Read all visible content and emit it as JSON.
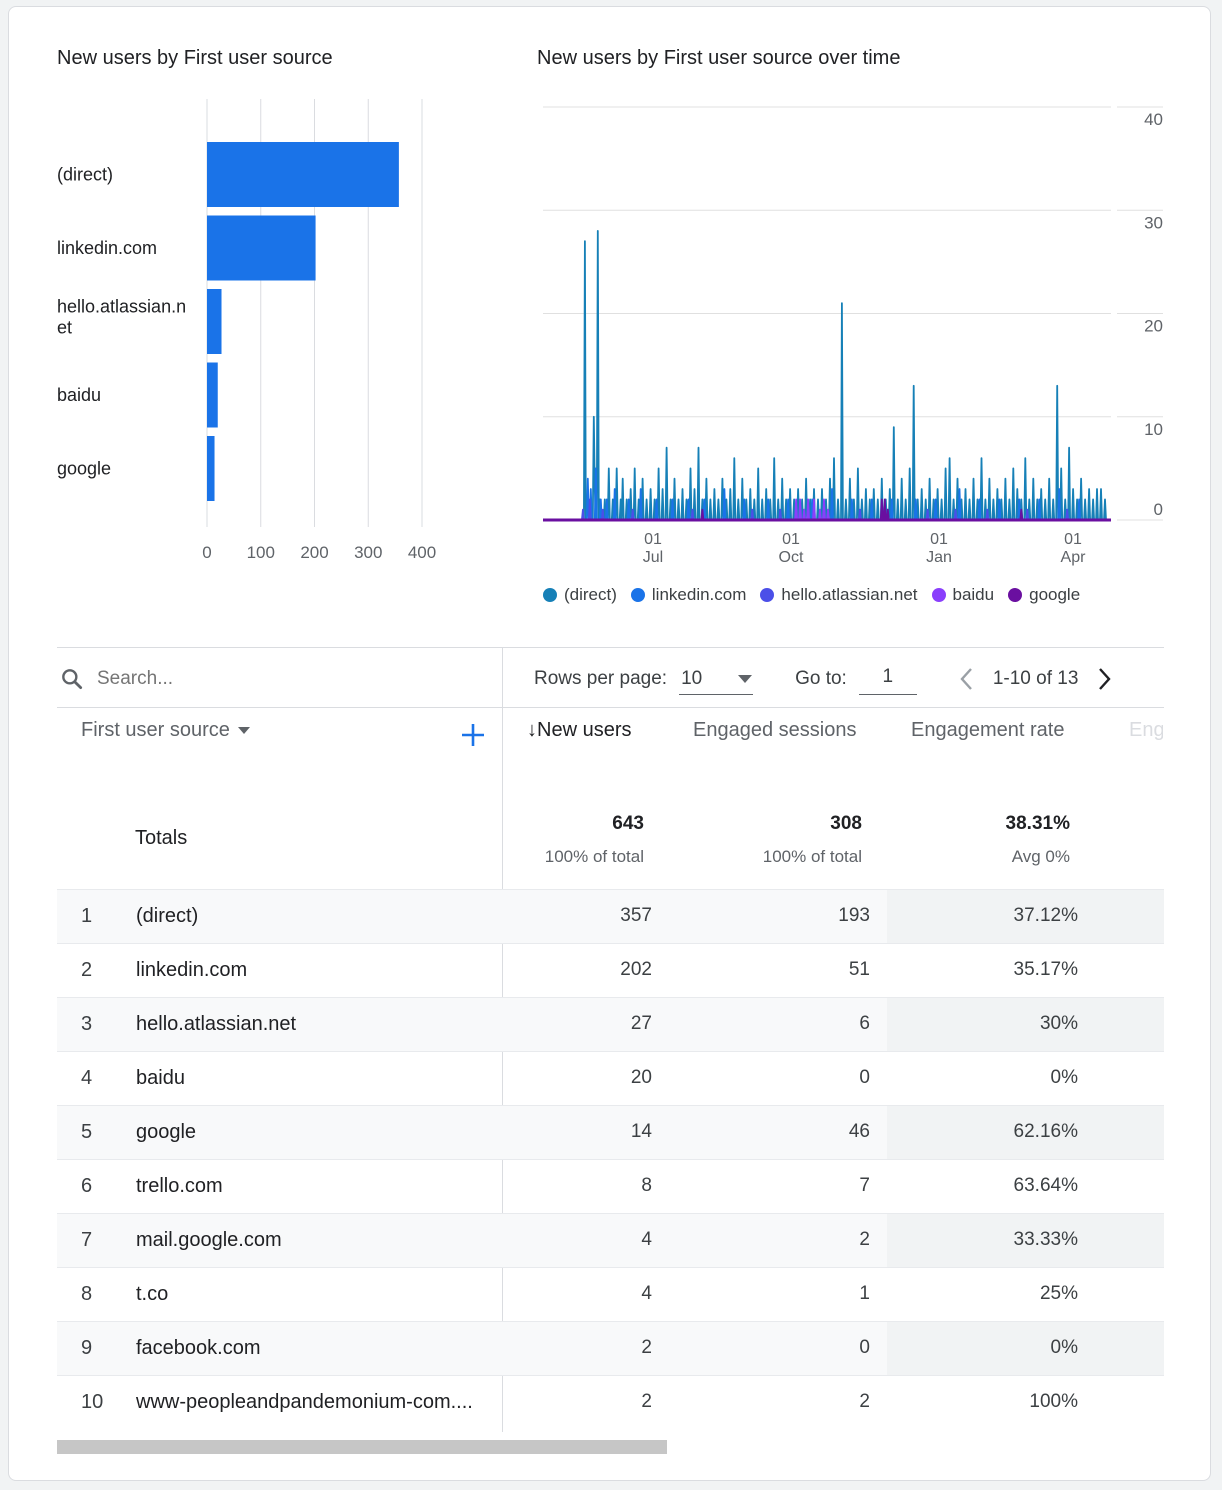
{
  "charts": {
    "bar_title": "New users by First user source",
    "line_title": "New users by First user source over time"
  },
  "chart_data": [
    {
      "type": "bar",
      "orientation": "horizontal",
      "title": "New users by First user source",
      "categories": [
        "(direct)",
        "linkedin.com",
        "hello.atlassian.net",
        "baidu",
        "google"
      ],
      "category_labels": [
        [
          "(direct)"
        ],
        [
          "linkedin.com"
        ],
        [
          "hello.atlassian.n",
          "et"
        ],
        [
          "baidu"
        ],
        [
          "google"
        ]
      ],
      "values": [
        357,
        202,
        27,
        20,
        14
      ],
      "xlim": [
        0,
        400
      ],
      "xticks": [
        "0",
        "100",
        "200",
        "300",
        "400"
      ],
      "color": "#1a73e8"
    },
    {
      "type": "line",
      "title": "New users by First user source over time",
      "ylim": [
        0,
        40
      ],
      "yticks": [
        "0",
        "10",
        "20",
        "30",
        "40"
      ],
      "xticks": [
        {
          "day": "01",
          "month": "Jul"
        },
        {
          "day": "01",
          "month": "Oct"
        },
        {
          "day": "01",
          "month": "Jan"
        },
        {
          "day": "01",
          "month": "Apr"
        }
      ],
      "series": [
        {
          "name": "(direct)",
          "color": "#1680b7",
          "spikes": [
            [
              42,
              27
            ],
            [
              44,
              0
            ],
            [
              51,
              10
            ],
            [
              52,
              3
            ],
            [
              55,
              28
            ],
            [
              57,
              2
            ],
            [
              62,
              2
            ],
            [
              66,
              5
            ],
            [
              70,
              2
            ],
            [
              74,
              5
            ],
            [
              78,
              2
            ],
            [
              80,
              4
            ],
            [
              84,
              2
            ],
            [
              88,
              3
            ],
            [
              92,
              5
            ],
            [
              96,
              2
            ],
            [
              100,
              4
            ],
            [
              104,
              2
            ],
            [
              108,
              3
            ],
            [
              112,
              2
            ],
            [
              116,
              5
            ],
            [
              120,
              3
            ],
            [
              124,
              7
            ],
            [
              128,
              2
            ],
            [
              132,
              4
            ],
            [
              136,
              2
            ],
            [
              140,
              3
            ],
            [
              144,
              2
            ],
            [
              148,
              5
            ],
            [
              152,
              3
            ],
            [
              156,
              7
            ],
            [
              160,
              2
            ],
            [
              164,
              4
            ],
            [
              168,
              2
            ],
            [
              172,
              3
            ],
            [
              176,
              2
            ],
            [
              180,
              4
            ],
            [
              184,
              2
            ],
            [
              188,
              3
            ],
            [
              192,
              6
            ],
            [
              196,
              2
            ],
            [
              200,
              4
            ],
            [
              204,
              2
            ],
            [
              208,
              3
            ],
            [
              212,
              2
            ],
            [
              216,
              5
            ],
            [
              220,
              2
            ],
            [
              224,
              3
            ],
            [
              228,
              2
            ],
            [
              232,
              6
            ],
            [
              236,
              2
            ],
            [
              240,
              4
            ],
            [
              244,
              2
            ],
            [
              248,
              3
            ],
            [
              252,
              2
            ],
            [
              256,
              3
            ],
            [
              260,
              2
            ],
            [
              264,
              4
            ],
            [
              268,
              2
            ],
            [
              272,
              3
            ],
            [
              276,
              2
            ],
            [
              280,
              3
            ],
            [
              284,
              2
            ],
            [
              288,
              4
            ],
            [
              292,
              6
            ],
            [
              296,
              2
            ],
            [
              300,
              21
            ],
            [
              304,
              2
            ],
            [
              308,
              4
            ],
            [
              312,
              2
            ],
            [
              316,
              5
            ],
            [
              320,
              2
            ],
            [
              324,
              3
            ],
            [
              328,
              2
            ],
            [
              332,
              3
            ],
            [
              336,
              2
            ],
            [
              340,
              4
            ],
            [
              344,
              2
            ],
            [
              348,
              3
            ],
            [
              352,
              9
            ],
            [
              356,
              2
            ],
            [
              360,
              4
            ],
            [
              364,
              2
            ],
            [
              368,
              5
            ],
            [
              372,
              13
            ],
            [
              376,
              2
            ],
            [
              380,
              3
            ],
            [
              384,
              2
            ],
            [
              388,
              4
            ],
            [
              392,
              2
            ],
            [
              396,
              3
            ],
            [
              400,
              2
            ],
            [
              404,
              5
            ],
            [
              408,
              6
            ],
            [
              412,
              2
            ],
            [
              416,
              4
            ],
            [
              420,
              2
            ],
            [
              424,
              3
            ],
            [
              428,
              2
            ],
            [
              432,
              4
            ],
            [
              436,
              2
            ],
            [
              440,
              6
            ],
            [
              444,
              2
            ],
            [
              448,
              4
            ],
            [
              452,
              2
            ],
            [
              456,
              3
            ],
            [
              460,
              2
            ],
            [
              464,
              4
            ],
            [
              468,
              2
            ],
            [
              472,
              5
            ],
            [
              476,
              3
            ],
            [
              480,
              2
            ],
            [
              484,
              6
            ],
            [
              488,
              2
            ],
            [
              492,
              4
            ],
            [
              496,
              2
            ],
            [
              500,
              3
            ],
            [
              504,
              2
            ],
            [
              508,
              4
            ],
            [
              512,
              2
            ],
            [
              516,
              13
            ],
            [
              520,
              5
            ],
            [
              524,
              2
            ],
            [
              528,
              7
            ],
            [
              532,
              3
            ],
            [
              536,
              2
            ],
            [
              540,
              4
            ],
            [
              544,
              2
            ],
            [
              548,
              3
            ],
            [
              552,
              2
            ],
            [
              556,
              3
            ],
            [
              560,
              3
            ],
            [
              564,
              2
            ]
          ]
        },
        {
          "name": "linkedin.com",
          "color": "#1a73e8",
          "spikes": [
            [
              45,
              4
            ],
            [
              48,
              3
            ],
            [
              53,
              5
            ],
            [
              58,
              2
            ],
            [
              64,
              2
            ],
            [
              72,
              3
            ],
            [
              86,
              2
            ],
            [
              98,
              3
            ],
            [
              114,
              2
            ],
            [
              130,
              2
            ],
            [
              146,
              2
            ],
            [
              162,
              2
            ],
            [
              182,
              3
            ],
            [
              202,
              2
            ],
            [
              226,
              2
            ],
            [
              246,
              2
            ],
            [
              270,
              2
            ],
            [
              290,
              3
            ],
            [
              310,
              2
            ],
            [
              330,
              2
            ],
            [
              350,
              2
            ],
            [
              374,
              2
            ],
            [
              394,
              2
            ],
            [
              418,
              3
            ],
            [
              438,
              2
            ],
            [
              458,
              2
            ],
            [
              478,
              2
            ],
            [
              498,
              2
            ],
            [
              518,
              3
            ],
            [
              538,
              2
            ]
          ]
        },
        {
          "name": "hello.atlassian.net",
          "color": "#4b4fe8",
          "spikes": [
            [
              40,
              1
            ],
            [
              47,
              2
            ],
            [
              60,
              1
            ],
            [
              90,
              1
            ],
            [
              150,
              1
            ],
            [
              210,
              1
            ],
            [
              238,
              1
            ],
            [
              318,
              1
            ],
            [
              346,
              1
            ],
            [
              386,
              1
            ],
            [
              414,
              1
            ],
            [
              446,
              1
            ],
            [
              486,
              1
            ],
            [
              526,
              1
            ]
          ]
        },
        {
          "name": "baidu",
          "color": "#8a3ffc",
          "spikes": [
            [
              254,
              2
            ],
            [
              258,
              2
            ],
            [
              262,
              1
            ],
            [
              266,
              2
            ],
            [
              272,
              2
            ],
            [
              278,
              1
            ],
            [
              282,
              2
            ],
            [
              286,
              1
            ]
          ]
        },
        {
          "name": "google",
          "color": "#6a0fa0",
          "spikes": [
            [
              340,
              2
            ],
            [
              343,
              2
            ],
            [
              346,
              1
            ],
            [
              160,
              1
            ],
            [
              480,
              1
            ]
          ]
        }
      ]
    }
  ],
  "legend": [
    {
      "label": "(direct)",
      "color": "#1680b7"
    },
    {
      "label": "linkedin.com",
      "color": "#1a73e8"
    },
    {
      "label": "hello.atlassian.net",
      "color": "#4b4fe8"
    },
    {
      "label": "baidu",
      "color": "#8a3ffc"
    },
    {
      "label": "google",
      "color": "#6a0fa0"
    }
  ],
  "table": {
    "search_placeholder": "Search...",
    "rows_per_page_label": "Rows per page:",
    "rows_per_page_value": "10",
    "goto_label": "Go to:",
    "goto_value": "1",
    "page_range": "1-10 of 13",
    "dimension_header": "First user source",
    "sort_arrow": "↓",
    "headers": [
      "New users",
      "Engaged sessions",
      "Engagement rate",
      "Eng"
    ],
    "totals": {
      "label": "Totals",
      "new_users": "643",
      "new_users_sub": "100% of total",
      "engaged_sessions": "308",
      "engaged_sessions_sub": "100% of total",
      "engagement_rate": "38.31%",
      "engagement_rate_sub": "Avg 0%"
    },
    "rows": [
      {
        "idx": "1",
        "name": "(direct)",
        "new_users": "357",
        "engaged": "193",
        "rate": "37.12%"
      },
      {
        "idx": "2",
        "name": "linkedin.com",
        "new_users": "202",
        "engaged": "51",
        "rate": "35.17%"
      },
      {
        "idx": "3",
        "name": "hello.atlassian.net",
        "new_users": "27",
        "engaged": "6",
        "rate": "30%"
      },
      {
        "idx": "4",
        "name": "baidu",
        "new_users": "20",
        "engaged": "0",
        "rate": "0%"
      },
      {
        "idx": "5",
        "name": "google",
        "new_users": "14",
        "engaged": "46",
        "rate": "62.16%"
      },
      {
        "idx": "6",
        "name": "trello.com",
        "new_users": "8",
        "engaged": "7",
        "rate": "63.64%"
      },
      {
        "idx": "7",
        "name": "mail.google.com",
        "new_users": "4",
        "engaged": "2",
        "rate": "33.33%"
      },
      {
        "idx": "8",
        "name": "t.co",
        "new_users": "4",
        "engaged": "1",
        "rate": "25%"
      },
      {
        "idx": "9",
        "name": "facebook.com",
        "new_users": "2",
        "engaged": "0",
        "rate": "0%"
      },
      {
        "idx": "10",
        "name": "www-peopleandpandemonium-com....",
        "new_users": "2",
        "engaged": "2",
        "rate": "100%"
      }
    ]
  }
}
